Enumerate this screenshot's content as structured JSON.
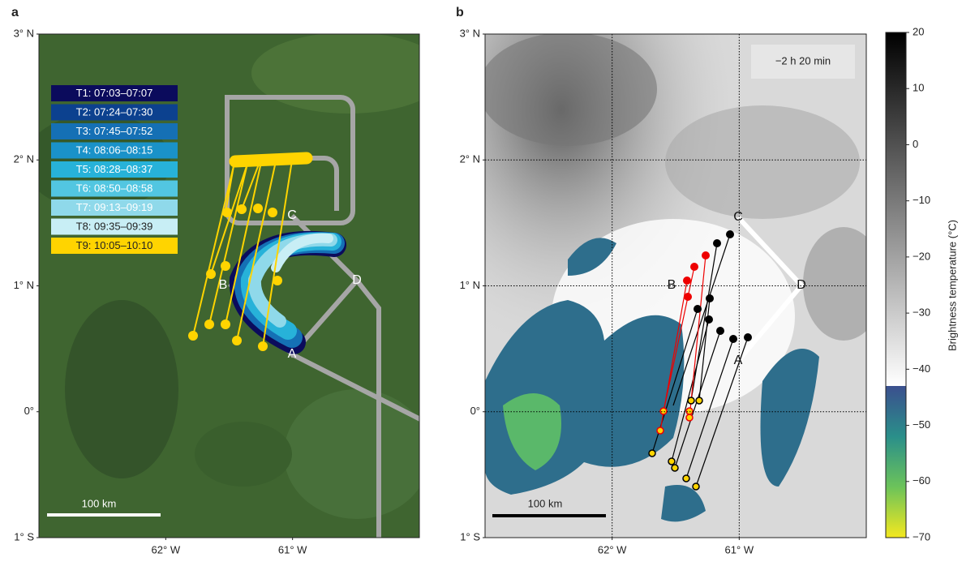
{
  "panel_a": {
    "label": "a",
    "lat_lim": [
      -1,
      3
    ],
    "lon_lim": [
      -63,
      -60
    ],
    "lat_ticks": [
      {
        "value": 3,
        "label": "3° N"
      },
      {
        "value": 2,
        "label": "2° N"
      },
      {
        "value": 1,
        "label": "1° N"
      },
      {
        "value": 0,
        "label": "0°"
      },
      {
        "value": -1,
        "label": "1° S"
      }
    ],
    "lon_ticks": [
      {
        "value": -62,
        "label": "62° W"
      },
      {
        "value": -61,
        "label": "61° W"
      }
    ],
    "legend": [
      {
        "name": "T1: 07:03–07:07",
        "color": "#0b0b5c"
      },
      {
        "name": "T2: 07:24–07:30",
        "color": "#0c418f"
      },
      {
        "name": "T3: 07:45–07:52",
        "color": "#1570b5"
      },
      {
        "name": "T4: 08:06–08:15",
        "color": "#1a92c9"
      },
      {
        "name": "T5: 08:28–08:37",
        "color": "#27b2d9"
      },
      {
        "name": "T6: 08:50–08:58",
        "color": "#52c6e1"
      },
      {
        "name": "T7: 09:13–09:19",
        "color": "#8fd9ea"
      },
      {
        "name": "T8: 09:35–09:39",
        "color": "#c8eef5"
      },
      {
        "name": "T9: 10:05–10:10",
        "color": "#ffd400"
      }
    ],
    "waypoints": [
      "A",
      "B",
      "C",
      "D"
    ],
    "scale_bar": "100 km"
  },
  "panel_b": {
    "label": "b",
    "lat_lim": [
      -1,
      3
    ],
    "lon_lim": [
      -63,
      -60
    ],
    "lat_ticks": [
      {
        "value": 3,
        "label": "3° N"
      },
      {
        "value": 2,
        "label": "2° N"
      },
      {
        "value": 1,
        "label": "1° N"
      },
      {
        "value": 0,
        "label": "0°"
      },
      {
        "value": -1,
        "label": "1° S"
      }
    ],
    "lon_ticks": [
      {
        "value": -62,
        "label": "62° W"
      },
      {
        "value": -61,
        "label": "61° W"
      }
    ],
    "grid": true,
    "waypoints": [
      "A",
      "B",
      "C",
      "D"
    ],
    "scale_bar": "100 km",
    "time_offset": "−2 h 20 min"
  },
  "colorbar": {
    "label": "Brightness temperature (°C)",
    "lim": [
      -70,
      20
    ],
    "ticks": [
      20,
      10,
      0,
      {
        "value": -10,
        "label": "−10"
      },
      {
        "value": -20,
        "label": "−20"
      },
      {
        "value": -30,
        "label": "−30"
      },
      {
        "value": -40,
        "label": "−40"
      },
      {
        "value": -50,
        "label": "−50"
      },
      {
        "value": -60,
        "label": "−60"
      },
      {
        "value": -70,
        "label": "−70"
      }
    ]
  }
}
